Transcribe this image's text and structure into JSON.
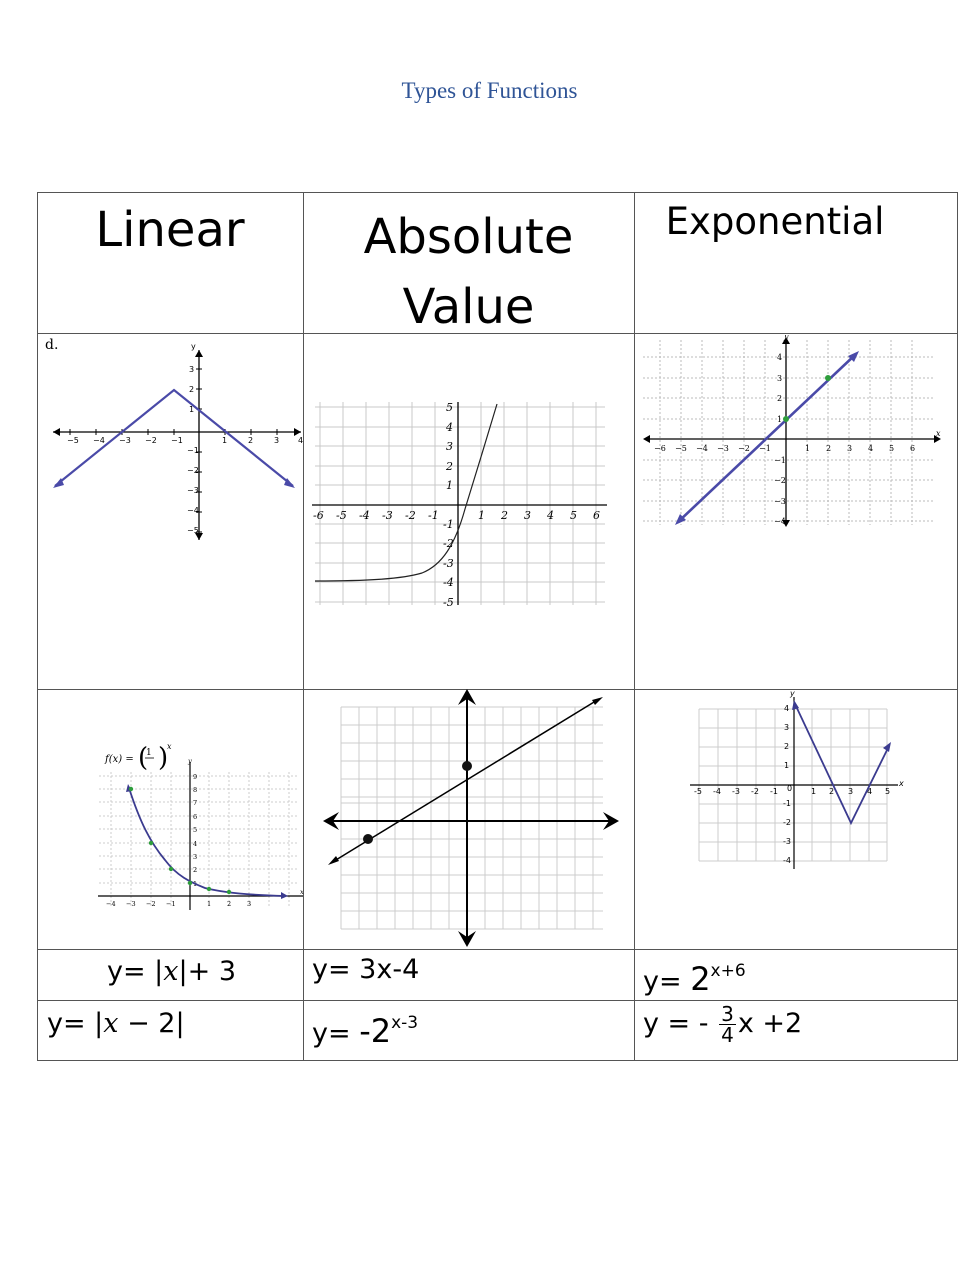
{
  "page": {
    "title": "Types of Functions"
  },
  "headers": {
    "linear": "Linear",
    "absolute_value_line1": "Absolute",
    "absolute_value_line2": "Value",
    "exponential": "Exponential"
  },
  "graphs": {
    "graph1": {
      "label": "d.",
      "description": "absolute value V opening down"
    },
    "graph4": {
      "function_label_prefix": "f(x) =",
      "function_label_base_num": "1",
      "function_label_base_den": "2",
      "function_label_exp": "x"
    }
  },
  "equations": {
    "row1": {
      "col1_prefix": "y= |",
      "col1_var": "x",
      "col1_suffix": "|+ 3",
      "col2": "y= 3x-4",
      "col3_prefix": "y= ",
      "col3_base": "2",
      "col3_exp": "x+6"
    },
    "row2": {
      "col1_prefix": "y= |",
      "col1_var": "x",
      "col1_suffix": " − 2|",
      "col2_prefix": "y= ",
      "col2_base": "-2",
      "col2_exp": "x-3",
      "col3_prefix": "y = - ",
      "col3_num": "3",
      "col3_den": "4",
      "col3_suffix": "x +2"
    }
  },
  "colors": {
    "title": "#2f5496",
    "graph_line": "#4a4aa8",
    "point": "#2e9e3c"
  }
}
